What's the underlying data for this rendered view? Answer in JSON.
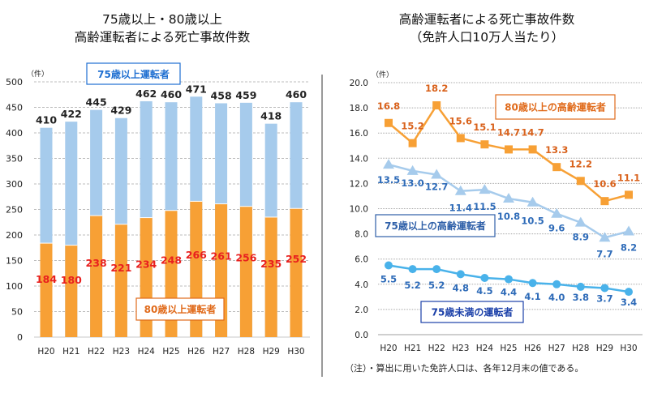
{
  "chart_data": [
    {
      "type": "bar",
      "stacked": true,
      "title": "75歳以上・80歳以上\n高齢運転者による死亡事故件数",
      "title_lines": [
        "75歳以上・80歳以上",
        "高齢運転者による死亡事故件数"
      ],
      "unit_label": "（件）",
      "categories": [
        "H20",
        "H21",
        "H22",
        "H23",
        "H24",
        "H25",
        "H26",
        "H27",
        "H28",
        "H29",
        "H30"
      ],
      "ylim": [
        0,
        500
      ],
      "yticks": [
        0,
        50,
        100,
        150,
        200,
        250,
        300,
        350,
        400,
        450,
        500
      ],
      "grid": true,
      "series": [
        {
          "name": "80歳以上運転者",
          "color": "#f7a035",
          "label_color": "#e8201e",
          "values": [
            184,
            180,
            238,
            221,
            234,
            248,
            266,
            261,
            256,
            235,
            252
          ]
        },
        {
          "name": "75歳以上運転者",
          "color": "#a6cbec",
          "label_color": "#222222",
          "values": [
            410,
            422,
            445,
            429,
            462,
            460,
            471,
            458,
            459,
            418,
            460
          ],
          "note": "total of 75+ drivers; bar drawn from 0, 80+ segment overlaid"
        }
      ],
      "legend_boxes": [
        {
          "text": "75歳以上運転者",
          "color": "#1f6fd1",
          "position": "top-left"
        },
        {
          "text": "80歳以上運転者",
          "color": "#e06a1a",
          "position": "bottom-center"
        }
      ]
    },
    {
      "type": "line",
      "title": "高齢運転者による死亡事故件数\n（免許人口10万人当たり）",
      "title_lines": [
        "高齢運転者による死亡事故件数",
        "（免許人口10万人当たり）"
      ],
      "unit_label": "（件）",
      "categories": [
        "H20",
        "H21",
        "H22",
        "H23",
        "H24",
        "H25",
        "H26",
        "H27",
        "H28",
        "H29",
        "H30"
      ],
      "ylim": [
        0,
        20
      ],
      "yticks": [
        "0.0",
        "2.0",
        "4.0",
        "6.0",
        "8.0",
        "10.0",
        "12.0",
        "14.0",
        "16.0",
        "18.0",
        "20.0"
      ],
      "grid": true,
      "series": [
        {
          "name": "80歳以上の高齢運転者",
          "marker": "square",
          "color": "#f7a035",
          "label_color": "#d9621c",
          "values": [
            16.8,
            15.2,
            18.2,
            15.6,
            15.1,
            14.7,
            14.7,
            13.3,
            12.2,
            10.6,
            11.1
          ]
        },
        {
          "name": "75歳以上の高齢運転者",
          "marker": "triangle",
          "color": "#a6cbec",
          "label_color": "#2e6bb8",
          "values": [
            13.5,
            13.0,
            12.7,
            11.4,
            11.5,
            10.8,
            10.5,
            9.6,
            8.9,
            7.7,
            8.2
          ]
        },
        {
          "name": "75歳未満の運転者",
          "marker": "circle",
          "color": "#49b2ea",
          "label_color": "#2e6bb8",
          "values": [
            5.5,
            5.2,
            5.2,
            4.8,
            4.5,
            4.4,
            4.1,
            4.0,
            3.8,
            3.7,
            3.4
          ]
        }
      ],
      "legend_boxes": [
        {
          "text": "80歳以上の高齢運転者",
          "color": "#e06a1a",
          "position": "top-right"
        },
        {
          "text": "75歳以上の高齢運転者",
          "color": "#2e5fa8",
          "position": "middle-left"
        },
        {
          "text": "75歳未満の運転者",
          "color": "#1a3fa8",
          "position": "bottom-center"
        }
      ],
      "footnote": "（注）・算出に用いた免許人口は、各年12月末の値である。"
    }
  ]
}
